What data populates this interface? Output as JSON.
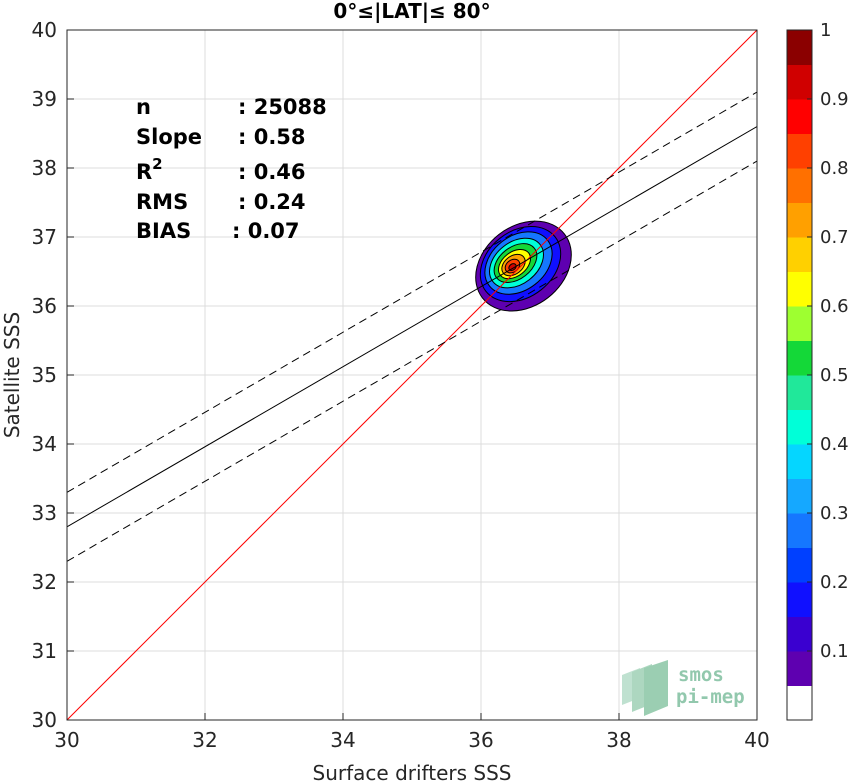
{
  "chart_data": {
    "type": "scatter",
    "title": "0°≤|LAT|≤ 80°",
    "xlabel": "Surface drifters SSS",
    "ylabel": "Satellite SSS",
    "xlim": [
      30,
      40
    ],
    "ylim": [
      30,
      40
    ],
    "xticks": [
      "30",
      "32",
      "34",
      "36",
      "38",
      "40"
    ],
    "yticks": [
      "30",
      "31",
      "32",
      "33",
      "34",
      "35",
      "36",
      "37",
      "38",
      "39",
      "40"
    ],
    "grid": true,
    "stats": [
      {
        "label": "n",
        "value": ": 25088"
      },
      {
        "label": "Slope",
        "value": ": 0.58"
      },
      {
        "label": "R",
        "sup": "2",
        "value": ": 0.46"
      },
      {
        "label": "RMS",
        "value": ": 0.24"
      },
      {
        "label": "BIAS",
        "value": ": 0.07"
      }
    ],
    "lines": {
      "identity": {
        "x": [
          30,
          40
        ],
        "y": [
          30,
          40
        ],
        "color": "#ff0000"
      },
      "fit": {
        "x": [
          30,
          40
        ],
        "y": [
          32.8,
          38.6
        ],
        "color": "#000000"
      },
      "fit_upper": {
        "x": [
          30,
          40
        ],
        "y": [
          33.3,
          39.1
        ],
        "color": "#000000",
        "dash": true
      },
      "fit_lower": {
        "x": [
          30,
          40
        ],
        "y": [
          32.3,
          38.1
        ],
        "color": "#000000",
        "dash": true
      }
    },
    "density_center": {
      "x": 36.5,
      "y": 36.55
    },
    "colorbar": {
      "ticks": [
        "0.1",
        "0.2",
        "0.3",
        "0.4",
        "0.5",
        "0.6",
        "0.7",
        "0.8",
        "0.9",
        "1"
      ],
      "range": [
        0,
        1
      ],
      "colors": [
        "#ffffff",
        "#5e00b0",
        "#3a00d0",
        "#1010ff",
        "#0040ff",
        "#1577ff",
        "#15a8ff",
        "#05d6ff",
        "#00ffd8",
        "#20e89a",
        "#14d838",
        "#9eff30",
        "#ffff00",
        "#ffd000",
        "#ffa000",
        "#ff7000",
        "#ff4000",
        "#ff0000",
        "#d00000",
        "#8b0000"
      ]
    },
    "logo": {
      "line1": "smos",
      "line2": "pi-mep"
    }
  }
}
